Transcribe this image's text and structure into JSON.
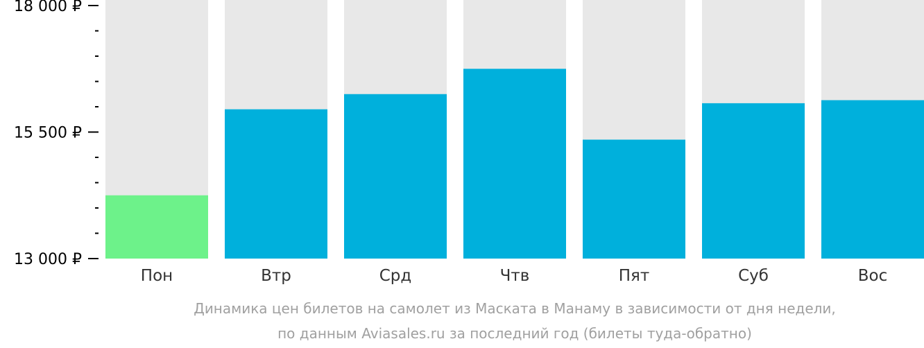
{
  "chart_data": {
    "type": "bar",
    "categories": [
      "Пон",
      "Втр",
      "Срд",
      "Чтв",
      "Пят",
      "Суб",
      "Вос"
    ],
    "values": [
      14250,
      15950,
      16250,
      16750,
      15350,
      16070,
      16130
    ],
    "highlight_index": 0,
    "ylim": [
      13000,
      18000
    ],
    "major_ticks": [
      13000,
      15500,
      18000
    ],
    "major_tick_labels": [
      "13 000 ₽",
      "15 500 ₽",
      "18 000 ₽"
    ],
    "minor_tick_step": 500,
    "grid": false,
    "colors": {
      "bar": "#00b0dc",
      "bar_highlight": "#6df28a",
      "bar_background": "#e8e8e8",
      "tick": "#000000",
      "caption": "#a0a0a0"
    },
    "caption_lines": [
      "Динамика цен билетов на самолет из Маската в Манаму в зависимости от дня недели,",
      "по данным Aviasales.ru за последний год (билеты туда-обратно)"
    ]
  }
}
